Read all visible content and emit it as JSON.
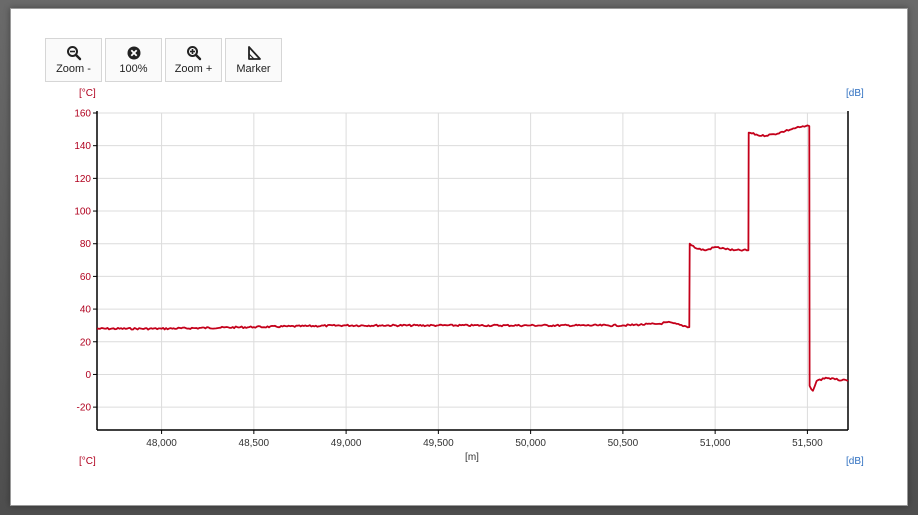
{
  "toolbar": {
    "zoom_out_label": "Zoom -",
    "reset_label": "100%",
    "zoom_in_label": "Zoom +",
    "marker_label": "Marker"
  },
  "icons": {
    "zoom_out": "zoom-out-icon",
    "reset": "reset-zoom-icon",
    "zoom_in": "zoom-in-icon",
    "marker": "marker-icon"
  },
  "colors": {
    "series": "#c4001a",
    "left_axis_text": "#b0001e",
    "right_axis_text": "#2f6fc0",
    "grid": "#dcdcdc",
    "axis": "#000000"
  },
  "chart_data": {
    "type": "line",
    "title": "",
    "xlabel": "[m]",
    "ylabel_left_top": "[°C]",
    "ylabel_left_bottom": "[°C]",
    "ylabel_right_top": "[dB]",
    "ylabel_right_bottom": "[dB]",
    "xlim": [
      47650,
      51720
    ],
    "ylim": [
      -34,
      160
    ],
    "x_ticks": [
      48000,
      48500,
      49000,
      49500,
      50000,
      50500,
      51000,
      51500
    ],
    "x_tick_labels": [
      "48,000",
      "48,500",
      "49,000",
      "49,500",
      "50,000",
      "50,500",
      "51,000",
      "51,500"
    ],
    "y_ticks": [
      -20,
      0,
      20,
      40,
      60,
      80,
      100,
      120,
      140,
      160
    ],
    "y_tick_labels": [
      "-20",
      "0",
      "20",
      "40",
      "60",
      "80",
      "100",
      "120",
      "140",
      "160"
    ],
    "grid": true,
    "legend": "none",
    "series": [
      {
        "x": [
          47650,
          48000,
          48500,
          49000,
          49500,
          50000,
          50500,
          50700,
          50740,
          50860,
          50862,
          50900,
          50950,
          51000,
          51050,
          51100,
          51180,
          51182,
          51250,
          51320,
          51380,
          51440,
          51510,
          51512,
          51530,
          51550,
          51600,
          51650,
          51720
        ],
        "y": [
          28,
          28,
          29,
          30,
          30,
          30,
          30,
          31,
          32,
          29,
          80,
          77,
          76,
          78,
          77,
          76,
          76,
          148,
          146,
          147,
          149,
          151,
          152,
          -7,
          -10,
          -4,
          -2,
          -3,
          -4
        ]
      }
    ]
  }
}
